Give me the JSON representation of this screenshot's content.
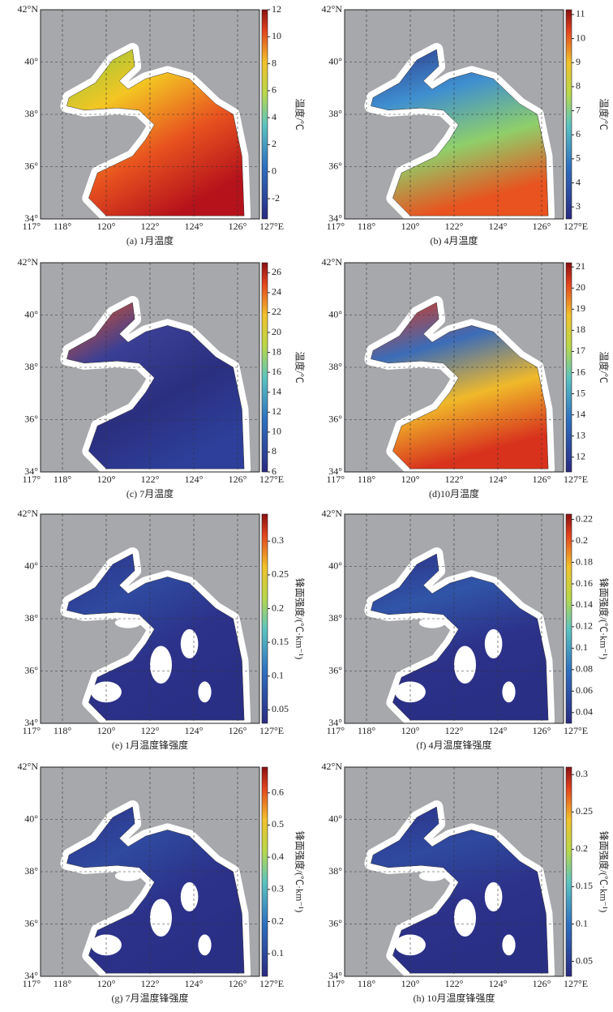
{
  "map_axes": {
    "lon_range": [
      117,
      127
    ],
    "lat_range": [
      34,
      42
    ],
    "lon_ticks": [
      {
        "value": 117,
        "label": "117°"
      },
      {
        "value": 118,
        "label": "118°"
      },
      {
        "value": 120,
        "label": "120°"
      },
      {
        "value": 122,
        "label": "122°"
      },
      {
        "value": 124,
        "label": "124°"
      },
      {
        "value": 126,
        "label": "126°"
      },
      {
        "value": 127,
        "label": "127°E"
      }
    ],
    "lat_ticks": [
      {
        "value": 42,
        "label": "42°N"
      },
      {
        "value": 40,
        "label": "40°"
      },
      {
        "value": 38,
        "label": "38°"
      },
      {
        "value": 36,
        "label": "36°"
      },
      {
        "value": 34,
        "label": "34°"
      }
    ]
  },
  "panels": [
    {
      "caption": "(a) 1月温度",
      "colorbar": {
        "label": "温度/℃",
        "range": [
          -3.5,
          12
        ],
        "ticks": [
          12,
          10,
          8,
          6,
          4,
          2,
          0,
          -2
        ]
      },
      "sea_colors": [
        "#8dc63f",
        "#f3c623",
        "#e8531f",
        "#b5121b"
      ]
    },
    {
      "caption": "(b) 4月温度",
      "colorbar": {
        "label": "温度/℃",
        "range": [
          2.5,
          11.2
        ],
        "ticks": [
          11,
          10,
          9,
          8,
          7,
          6,
          5,
          4,
          3
        ]
      },
      "sea_colors": [
        "#2e3a8c",
        "#3f8fd0",
        "#8fcf6a",
        "#e8531f"
      ]
    },
    {
      "caption": "(c) 7月温度",
      "colorbar": {
        "label": "温度/℃",
        "range": [
          6,
          27
        ],
        "ticks": [
          26,
          24,
          22,
          20,
          18,
          16,
          14,
          12,
          10,
          8,
          6
        ]
      },
      "sea_colors": [
        "#e8531f",
        "#3a3f95",
        "#2b2f80",
        "#2d3f9a"
      ]
    },
    {
      "caption": "(d)10月温度",
      "colorbar": {
        "label": "温度/℃",
        "range": [
          11.3,
          21.2
        ],
        "ticks": [
          21,
          20,
          19,
          18,
          17,
          16,
          15,
          14,
          13,
          12
        ]
      },
      "sea_colors": [
        "#d9381e",
        "#3b6cb8",
        "#f0b92a",
        "#d8321d"
      ]
    },
    {
      "caption": "(e) 1月温度锋强度",
      "colorbar": {
        "label": "锋面强度/(℃·km⁻¹)",
        "range": [
          0.03,
          0.34
        ],
        "ticks": [
          0.3,
          0.25,
          0.2,
          0.15,
          0.1,
          0.05
        ]
      },
      "sea_colors": [
        "#2c3189",
        "#2f4aa0",
        "#2c3189",
        "#2a2f86"
      ]
    },
    {
      "caption": "(f) 4月温度锋强度",
      "colorbar": {
        "label": "锋面强度/(℃·km⁻¹)",
        "range": [
          0.03,
          0.225
        ],
        "ticks": [
          0.22,
          0.2,
          0.18,
          0.16,
          0.14,
          0.12,
          0.1,
          0.08,
          0.06,
          0.04
        ]
      },
      "sea_colors": [
        "#2c3189",
        "#3055a8",
        "#2c3189",
        "#2a2f86"
      ]
    },
    {
      "caption": "(g) 7月温度锋强度",
      "colorbar": {
        "label": "锋面强度/(℃·km⁻¹)",
        "range": [
          0.03,
          0.68
        ],
        "ticks": [
          0.6,
          0.5,
          0.4,
          0.3,
          0.2,
          0.1
        ]
      },
      "sea_colors": [
        "#2c3189",
        "#2f4aa0",
        "#2c3189",
        "#2a2f86"
      ]
    },
    {
      "caption": "(h) 10月温度锋强度",
      "colorbar": {
        "label": "锋面强度/(℃·km⁻¹)",
        "range": [
          0.03,
          0.31
        ],
        "ticks": [
          0.3,
          0.25,
          0.2,
          0.15,
          0.1,
          0.05
        ]
      },
      "sea_colors": [
        "#2c3189",
        "#2f4aa0",
        "#2c3189",
        "#2a2f86"
      ]
    }
  ]
}
